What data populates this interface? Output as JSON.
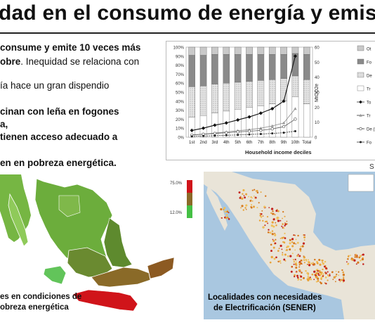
{
  "title": "dad en el consumo de energía y emis",
  "bullets": {
    "b1_bold": "consume y emite 10 veces más",
    "b2_bold": "obre",
    "b2_rest": ". Inequidad se relaciona con",
    "b3": "ía hace un gran dispendio",
    "b4": "cinan con leña en fogones",
    "b5": "a,",
    "b6": "tienen acceso adecuado a",
    "b7": "en en pobreza energética."
  },
  "chart_data": {
    "type": "bar",
    "xlabel": "Household income deciles",
    "ylabel_right": "MtCO2e",
    "categories": [
      "1st",
      "2nd",
      "3rd",
      "4th",
      "5th",
      "6th",
      "7th",
      "8th",
      "9th",
      "10th",
      "Total"
    ],
    "left_ticks": [
      "0%",
      "10%",
      "20%",
      "30%",
      "40%",
      "50%",
      "60%",
      "70%",
      "80%",
      "90%",
      "100%"
    ],
    "right_ticks": [
      "0",
      "10",
      "20",
      "30",
      "40",
      "50",
      "60"
    ],
    "ylim_left": [
      0,
      100
    ],
    "ylim_right": [
      0,
      60
    ],
    "stacked_series": [
      {
        "name": "Ot",
        "color": "#bdbdbd",
        "values": [
          9,
          9,
          8,
          8,
          8,
          8,
          8,
          8,
          8,
          7,
          8
        ]
      },
      {
        "name": "Fo",
        "color": "#8a8a8a",
        "values": [
          35,
          34,
          33,
          32,
          31,
          30,
          29,
          28,
          27,
          25,
          28
        ]
      },
      {
        "name": "De",
        "color": "#dedede",
        "values": [
          34,
          33,
          32,
          31,
          30,
          29,
          28,
          27,
          25,
          23,
          27
        ]
      },
      {
        "name": "Tr",
        "color": "#ffffff",
        "values": [
          22,
          24,
          27,
          29,
          31,
          33,
          35,
          37,
          40,
          45,
          37
        ]
      }
    ],
    "line_series": [
      {
        "name": "To",
        "marker": "diamond",
        "values": [
          4.5,
          6,
          8,
          9.5,
          11.5,
          13.5,
          16,
          19,
          24,
          54
        ]
      },
      {
        "name": "Tr",
        "marker": "triangle",
        "values": [
          1.5,
          2,
          2.8,
          3.5,
          4.3,
          5,
          6,
          7.5,
          9.5,
          19
        ]
      },
      {
        "name": "De",
        "marker": "circle",
        "values": [
          1.5,
          2,
          2.5,
          3,
          3.5,
          4,
          4.5,
          5.5,
          7,
          12
        ]
      },
      {
        "name": "Fo",
        "marker": "dot",
        "values": [
          0.5,
          0.8,
          1,
          1.3,
          1.5,
          1.8,
          2.1,
          2.5,
          3,
          4
        ]
      }
    ],
    "legend": [
      "Ot",
      "Fo",
      "De",
      "Tr",
      "To",
      "Tr",
      "De (R",
      "Fo"
    ]
  },
  "stray_label": "S",
  "left_map": {
    "scale_max": "75.0%",
    "scale_min": "12.0%",
    "caption_1": "es en condiciones de",
    "caption_2": "obreza energética"
  },
  "right_map": {
    "caption_1": "Localidades con necesidades",
    "caption_2": "de Electrificación (SENER)"
  }
}
